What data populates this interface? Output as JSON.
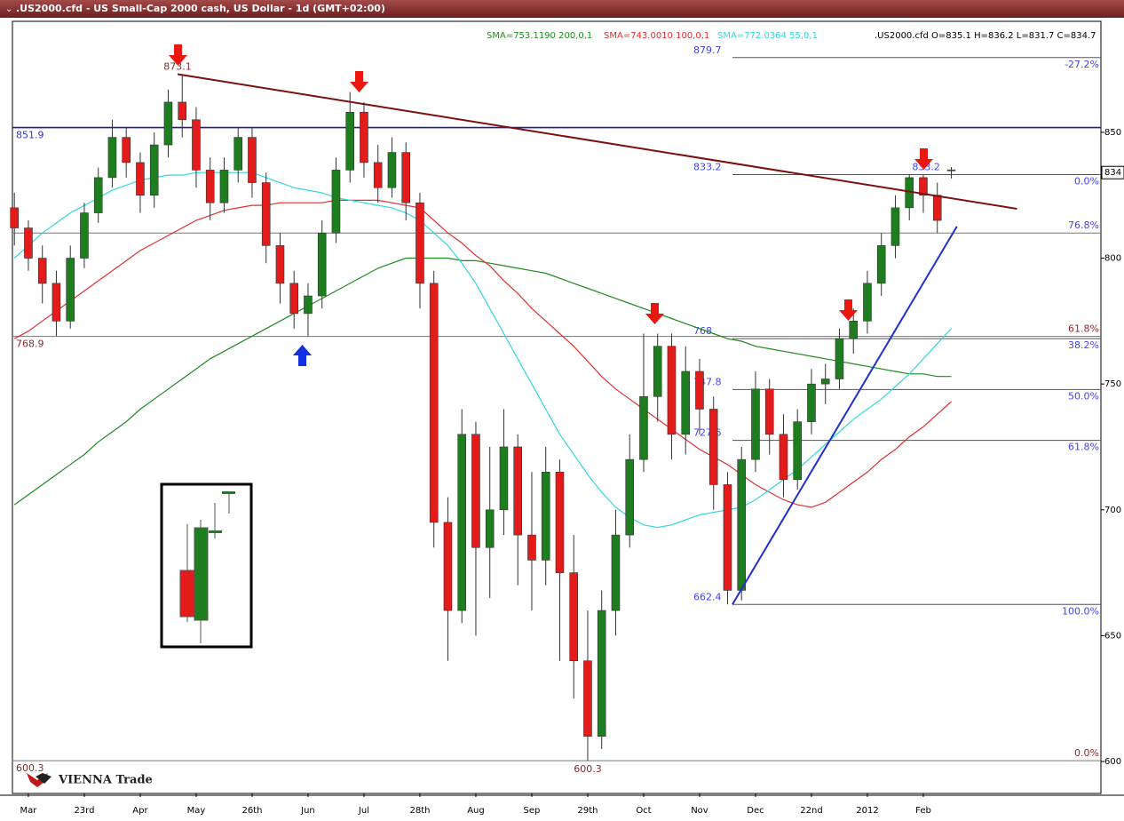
{
  "chart_data": {
    "type": "candlestick",
    "title": ".US2000.cfd - US Small-Cap 2000 cash, US Dollar - 1d (GMT+02:00)",
    "ohlc_label": ".US2000.cfd O=835.1 H=836.2 L=831.7 C=834.7",
    "logo": "VIENNA Trade",
    "categories": [
      null,
      "Mar",
      null,
      null,
      null,
      "23rd",
      null,
      null,
      null,
      "Apr",
      null,
      null,
      null,
      "May",
      null,
      null,
      null,
      "26th",
      null,
      null,
      null,
      "Jun",
      null,
      null,
      null,
      "Jul",
      null,
      null,
      null,
      "28th",
      null,
      null,
      null,
      "Aug",
      null,
      null,
      null,
      "Sep",
      null,
      null,
      null,
      "29th",
      null,
      null,
      null,
      "Oct",
      null,
      null,
      null,
      "Nov",
      null,
      null,
      null,
      "Dec",
      null,
      null,
      null,
      "22nd",
      null,
      null,
      null,
      "2012",
      null,
      null,
      null,
      "Feb",
      null,
      null
    ],
    "open": [
      820,
      812,
      800,
      790,
      775,
      800,
      818,
      832,
      848,
      838,
      825,
      845,
      862,
      855,
      835,
      822,
      835,
      848,
      830,
      805,
      790,
      778,
      785,
      810,
      835,
      858,
      838,
      828,
      842,
      822,
      790,
      695,
      660,
      730,
      685,
      700,
      725,
      690,
      680,
      715,
      675,
      640,
      610,
      660,
      690,
      720,
      745,
      765,
      730,
      755,
      740,
      710,
      668,
      720,
      748,
      730,
      712,
      735,
      750,
      752,
      768,
      775,
      790,
      805,
      820,
      832,
      825,
      835.1
    ],
    "high": [
      826,
      815,
      805,
      795,
      805,
      822,
      836,
      855,
      852,
      842,
      850,
      867,
      873.1,
      860,
      840,
      840,
      852,
      852,
      834,
      810,
      795,
      790,
      815,
      840,
      866,
      862,
      845,
      848,
      846,
      826,
      795,
      705,
      740,
      735,
      725,
      740,
      730,
      715,
      725,
      720,
      690,
      660,
      668,
      700,
      730,
      770,
      770,
      770,
      765,
      760,
      745,
      715,
      725,
      755,
      752,
      738,
      740,
      756,
      758,
      772,
      780,
      795,
      810,
      825,
      833.2,
      833,
      830,
      836.2
    ],
    "low": [
      805,
      795,
      782,
      769,
      772,
      796,
      814,
      828,
      832,
      818,
      820,
      840,
      848,
      828,
      815,
      818,
      830,
      824,
      798,
      782,
      772,
      768.9,
      780,
      806,
      830,
      832,
      822,
      824,
      815,
      780,
      685,
      640,
      655,
      650,
      665,
      690,
      670,
      660,
      670,
      640,
      625,
      600.3,
      605,
      650,
      685,
      715,
      735,
      720,
      722,
      730,
      700,
      662.4,
      664,
      715,
      722,
      705,
      708,
      730,
      742,
      748,
      762,
      770,
      785,
      800,
      815,
      818,
      810,
      831.7
    ],
    "close": [
      812,
      800,
      790,
      775,
      800,
      818,
      832,
      848,
      838,
      825,
      845,
      862,
      855,
      835,
      822,
      835,
      848,
      830,
      805,
      790,
      778,
      785,
      810,
      835,
      858,
      838,
      828,
      842,
      822,
      790,
      695,
      660,
      730,
      685,
      700,
      725,
      690,
      680,
      715,
      675,
      640,
      610,
      660,
      690,
      720,
      745,
      765,
      730,
      755,
      740,
      710,
      668,
      720,
      748,
      730,
      712,
      735,
      750,
      752,
      768,
      775,
      790,
      805,
      820,
      832,
      825,
      815,
      834.7
    ],
    "up_color": "#1e7d1e",
    "down_color": "#e31b1b",
    "sma": [
      {
        "name": "SMA=753.1190 200,0,1",
        "color": "#1f8a1f",
        "values": [
          702,
          706,
          710,
          714,
          718,
          722,
          727,
          731,
          735,
          740,
          744,
          748,
          752,
          756,
          760,
          763,
          766,
          769,
          772,
          775,
          778,
          781,
          784,
          787,
          790,
          793,
          796,
          798,
          800,
          800,
          800,
          800,
          799,
          799,
          798,
          797,
          796,
          795,
          794,
          792,
          790,
          788,
          786,
          784,
          782,
          780,
          778,
          776,
          774,
          772,
          770,
          768,
          767,
          765,
          764,
          763,
          762,
          761,
          760,
          759,
          758,
          757,
          756,
          755,
          754,
          754,
          753,
          753
        ]
      },
      {
        "name": "SMA=743.0010 100,0,1",
        "color": "#e03030",
        "values": [
          768,
          771,
          775,
          779,
          783,
          787,
          791,
          795,
          799,
          803,
          806,
          809,
          812,
          815,
          817,
          819,
          820,
          821,
          821,
          822,
          822,
          822,
          822,
          823,
          823,
          823,
          823,
          822,
          821,
          820,
          815,
          810,
          806,
          801,
          797,
          791,
          786,
          780,
          775,
          770,
          765,
          759,
          753,
          748,
          744,
          740,
          736,
          732,
          728,
          724,
          721,
          718,
          714,
          710,
          707,
          704,
          702,
          701,
          703,
          707,
          711,
          715,
          720,
          724,
          729,
          733,
          738,
          743
        ]
      },
      {
        "name": "SMA=772.0364 55,0,1",
        "color": "#33d6e0",
        "values": [
          800,
          805,
          810,
          814,
          818,
          821,
          824,
          827,
          829,
          831,
          832,
          833,
          833,
          834,
          834,
          834,
          834,
          834,
          832,
          830,
          828,
          827,
          826,
          824,
          823,
          822,
          821,
          820,
          818,
          815,
          810,
          805,
          798,
          790,
          780,
          770,
          760,
          750,
          740,
          730,
          722,
          714,
          707,
          701,
          697,
          694,
          693,
          694,
          696,
          698,
          699,
          700,
          701,
          704,
          708,
          712,
          716,
          721,
          726,
          731,
          736,
          740,
          744,
          749,
          754,
          760,
          766,
          772
        ]
      }
    ],
    "ohlc_color": "#000000",
    "levels": [
      {
        "value": 851.9,
        "color": "#1a1aa8",
        "label_color": "#3333cc"
      },
      {
        "value": 810,
        "label": "76.8%",
        "color": "#777777",
        "label_color": "#4444ee"
      },
      {
        "value": 768.9,
        "label": "61.8%",
        "color": "#777777",
        "label_color": "#8b2a2a",
        "show_value": true
      },
      {
        "value": 600.3,
        "label": "0.0%",
        "color": "#777777",
        "label_color": "#8b2a2a",
        "show_value": true
      }
    ],
    "fib_start": 51.35,
    "fib": [
      {
        "value": 879.7,
        "label": "-27.2%"
      },
      {
        "value": 833.2,
        "label": "0.0%"
      },
      {
        "value": 768.0,
        "label": "38.2%"
      },
      {
        "value": 747.8,
        "label": "50.0%"
      },
      {
        "value": 727.6,
        "label": "61.8%"
      },
      {
        "value": 662.4,
        "label": "100.0%"
      }
    ],
    "fib_color": "#4444ee",
    "trendlines": [
      {
        "x": [
          11.67,
          71.7
        ],
        "y": [
          873.1,
          819.6
        ],
        "color": "#7a1010"
      },
      {
        "x": [
          51.35,
          67.4
        ],
        "y": [
          662.4,
          812.6
        ],
        "color": "#1f2fd0"
      }
    ],
    "annotations": [
      {
        "x": 11.67,
        "value": 873.1,
        "color": "#8b2a2a"
      },
      {
        "x": 41,
        "value": 600.3,
        "color": "#8b2a2a"
      },
      {
        "x": 65.2,
        "value": 833.2,
        "color": "#4444ee"
      }
    ],
    "last_price": 834,
    "xlim": [
      -0.14,
      77.7
    ],
    "ylim": [
      587.3,
      894.1
    ],
    "yticks": [
      600,
      650,
      700,
      750,
      800,
      850
    ]
  }
}
